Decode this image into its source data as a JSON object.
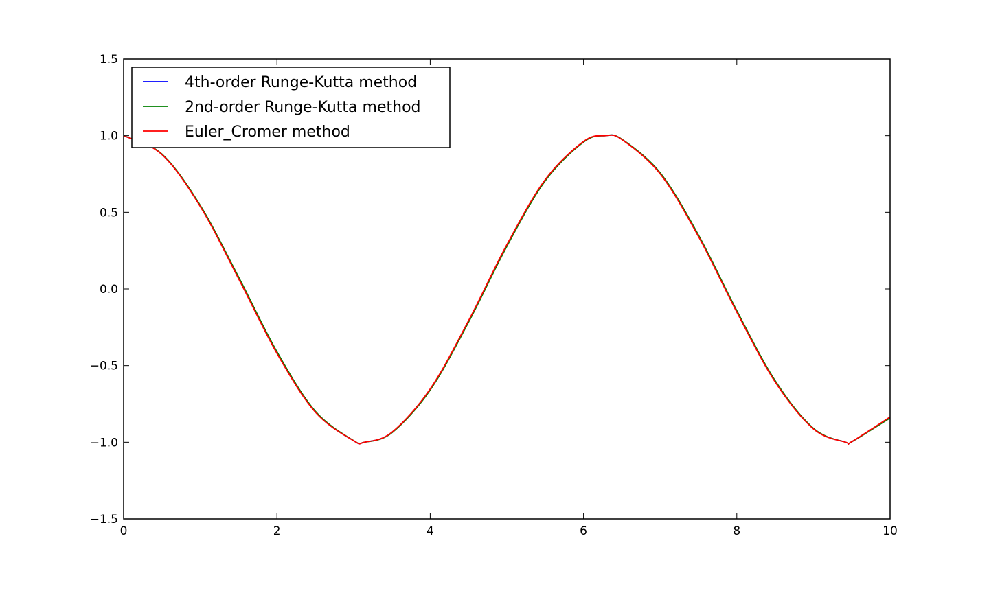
{
  "chart_data": {
    "type": "line",
    "title": "",
    "xlabel": "",
    "ylabel": "",
    "xlim": [
      0,
      10
    ],
    "ylim": [
      -1.5,
      1.5
    ],
    "xticks": [
      0,
      2,
      4,
      6,
      8,
      10
    ],
    "yticks": [
      -1.5,
      -1.0,
      -0.5,
      0.0,
      0.5,
      1.0,
      1.5
    ],
    "xtick_labels": [
      "0",
      "2",
      "4",
      "6",
      "8",
      "10"
    ],
    "ytick_labels": [
      "−1.5",
      "−1.0",
      "−0.5",
      "0.0",
      "0.5",
      "1.0",
      "1.5"
    ],
    "grid": false,
    "legend_position": "top-left",
    "series": [
      {
        "name": "4th-order Runge-Kutta method",
        "color": "#0000ff",
        "x": [
          0,
          0.5,
          1,
          1.5,
          2,
          2.5,
          3,
          3.14,
          3.5,
          4,
          4.5,
          5,
          5.5,
          6,
          6.28,
          6.5,
          7,
          7.5,
          8,
          8.5,
          9,
          9.42,
          9.5,
          10
        ],
        "y": [
          1.0,
          0.878,
          0.54,
          0.071,
          -0.416,
          -0.801,
          -0.99,
          -1.0,
          -0.936,
          -0.654,
          -0.211,
          0.284,
          0.709,
          0.96,
          1.0,
          0.976,
          0.754,
          0.347,
          -0.146,
          -0.602,
          -0.911,
          -1.0,
          -0.997,
          -0.839
        ]
      },
      {
        "name": "2nd-order Runge-Kutta method",
        "color": "#008000",
        "x": [
          0,
          0.5,
          1,
          1.5,
          2,
          2.5,
          3,
          3.14,
          3.5,
          4,
          4.5,
          5,
          5.5,
          6,
          6.28,
          6.5,
          7,
          7.5,
          8,
          8.5,
          9,
          9.42,
          9.5,
          10
        ],
        "y": [
          1.0,
          0.88,
          0.545,
          0.078,
          -0.409,
          -0.797,
          -0.989,
          -1.0,
          -0.938,
          -0.659,
          -0.217,
          0.278,
          0.705,
          0.958,
          1.0,
          0.977,
          0.758,
          0.352,
          -0.141,
          -0.598,
          -0.909,
          -1.0,
          -0.997,
          -0.842
        ]
      },
      {
        "name": "Euler_Cromer method",
        "color": "#ff0000",
        "x": [
          0,
          0.5,
          1,
          1.5,
          2,
          2.5,
          3,
          3.14,
          3.5,
          4,
          4.5,
          5,
          5.5,
          6,
          6.28,
          6.5,
          7,
          7.5,
          8,
          8.5,
          9,
          9.42,
          9.5,
          10
        ],
        "y": [
          1.0,
          0.877,
          0.538,
          0.067,
          -0.42,
          -0.803,
          -0.99,
          -1.0,
          -0.935,
          -0.652,
          -0.207,
          0.289,
          0.713,
          0.962,
          1.0,
          0.975,
          0.751,
          0.342,
          -0.151,
          -0.606,
          -0.913,
          -1.0,
          -0.996,
          -0.835
        ]
      }
    ]
  }
}
